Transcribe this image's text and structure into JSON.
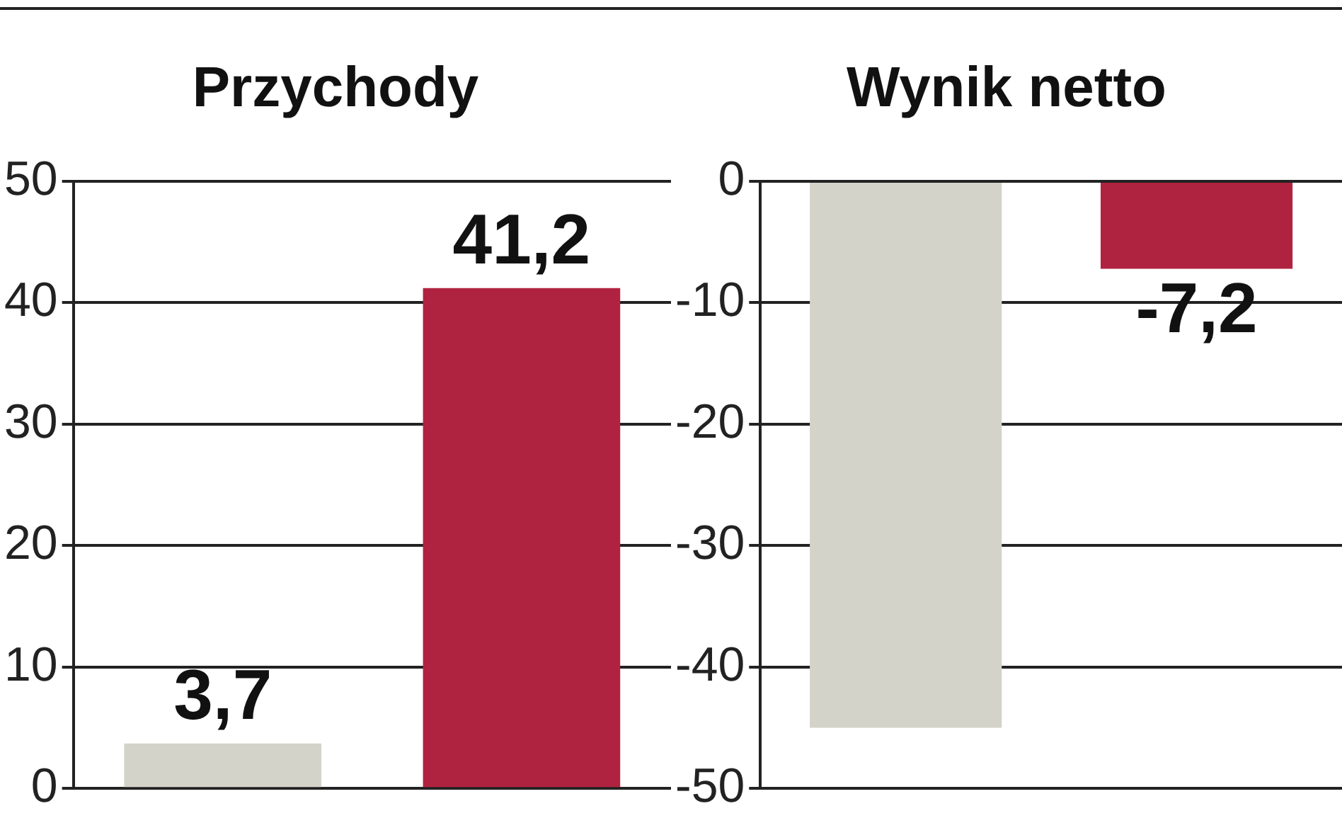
{
  "chart_data": [
    {
      "type": "bar",
      "title": "Przychody",
      "categories": [
        null,
        null
      ],
      "values": [
        3.7,
        41.2
      ],
      "colors": [
        "#d3d3c9",
        "#b02340"
      ],
      "value_labels": [
        "3,7",
        "41,2"
      ],
      "ylim": [
        0,
        50
      ],
      "yticks": [
        0,
        10,
        20,
        30,
        40,
        50
      ],
      "grid": "y"
    },
    {
      "type": "bar",
      "title": "Wynik netto",
      "categories": [
        null,
        null
      ],
      "values": [
        -45,
        -7.2
      ],
      "colors": [
        "#d3d3c9",
        "#b02340"
      ],
      "value_labels": [
        null,
        "-7,2"
      ],
      "ylim": [
        -50,
        0
      ],
      "yticks": [
        -50,
        -40,
        -30,
        -20,
        -10,
        0
      ],
      "grid": "y"
    }
  ]
}
